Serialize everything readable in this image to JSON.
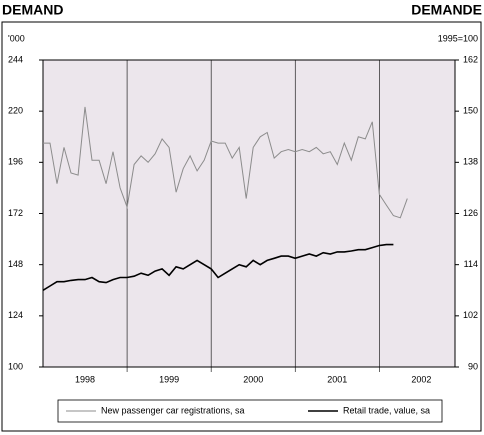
{
  "chart_data": {
    "type": "line",
    "title_left": "DEMAND",
    "title_right": "DEMANDE",
    "ylabel": "'000",
    "y2label": "1995=100",
    "x": [
      1998,
      1998.083,
      1998.167,
      1998.25,
      1998.333,
      1998.417,
      1998.5,
      1998.583,
      1998.667,
      1998.75,
      1998.833,
      1998.917,
      1999,
      1999.083,
      1999.167,
      1999.25,
      1999.333,
      1999.417,
      1999.5,
      1999.583,
      1999.667,
      1999.75,
      1999.833,
      1999.917,
      2000,
      2000.083,
      2000.167,
      2000.25,
      2000.333,
      2000.417,
      2000.5,
      2000.583,
      2000.667,
      2000.75,
      2000.833,
      2000.917,
      2001,
      2001.083,
      2001.167,
      2001.25,
      2001.333,
      2001.417,
      2001.5,
      2001.583,
      2001.667,
      2001.75,
      2001.833,
      2001.917,
      2002,
      2002.083,
      2002.167,
      2002.25,
      2002.333
    ],
    "series": [
      {
        "name": "New passenger car registrations, sa",
        "color": "#8c8c8c",
        "axis": "y",
        "values": [
          205,
          205,
          186,
          203,
          191,
          190,
          222,
          197,
          197,
          186,
          201,
          184,
          175,
          195,
          199,
          196,
          200,
          207,
          203,
          182,
          193,
          199,
          192,
          197,
          206,
          205,
          205,
          198,
          203,
          179,
          203,
          208,
          210,
          198,
          201,
          202,
          201,
          202,
          201,
          203,
          200,
          201,
          195,
          205,
          197,
          208,
          207,
          215,
          181,
          176,
          171,
          170,
          179
        ]
      },
      {
        "name": "Retail trade, value, sa",
        "color": "#000000",
        "axis": "y2",
        "values": [
          108,
          109,
          110,
          110,
          110.3,
          110.5,
          110.5,
          111,
          110,
          109.8,
          110.5,
          111,
          111,
          111.3,
          112,
          111.5,
          112.5,
          113,
          111.5,
          113.5,
          113,
          114,
          115,
          114,
          113,
          111,
          112,
          113,
          114,
          113.5,
          115,
          114,
          115,
          115.5,
          116,
          116,
          115.5,
          116,
          116.5,
          116,
          116.8,
          116.5,
          117,
          117,
          117.2,
          117.5,
          117.5,
          118,
          118.5,
          118.7,
          118.7,
          null,
          null
        ]
      }
    ],
    "xlim": [
      1998,
      2002.9
    ],
    "xticks": [
      {
        "value": 1998.5,
        "label": "1998"
      },
      {
        "value": 1999.5,
        "label": "1999"
      },
      {
        "value": 2000.5,
        "label": "2000"
      },
      {
        "value": 2001.5,
        "label": "2001"
      },
      {
        "value": 2002.5,
        "label": "2002"
      }
    ],
    "xgrid": [
      1999,
      2000,
      2001,
      2002
    ],
    "ylim": [
      100,
      244
    ],
    "yticks": [
      100,
      124,
      148,
      172,
      196,
      220,
      244
    ],
    "y2lim": [
      90,
      162
    ],
    "y2ticks": [
      90,
      102,
      114,
      126,
      138,
      150,
      162
    ],
    "background": "#ece6ec"
  }
}
